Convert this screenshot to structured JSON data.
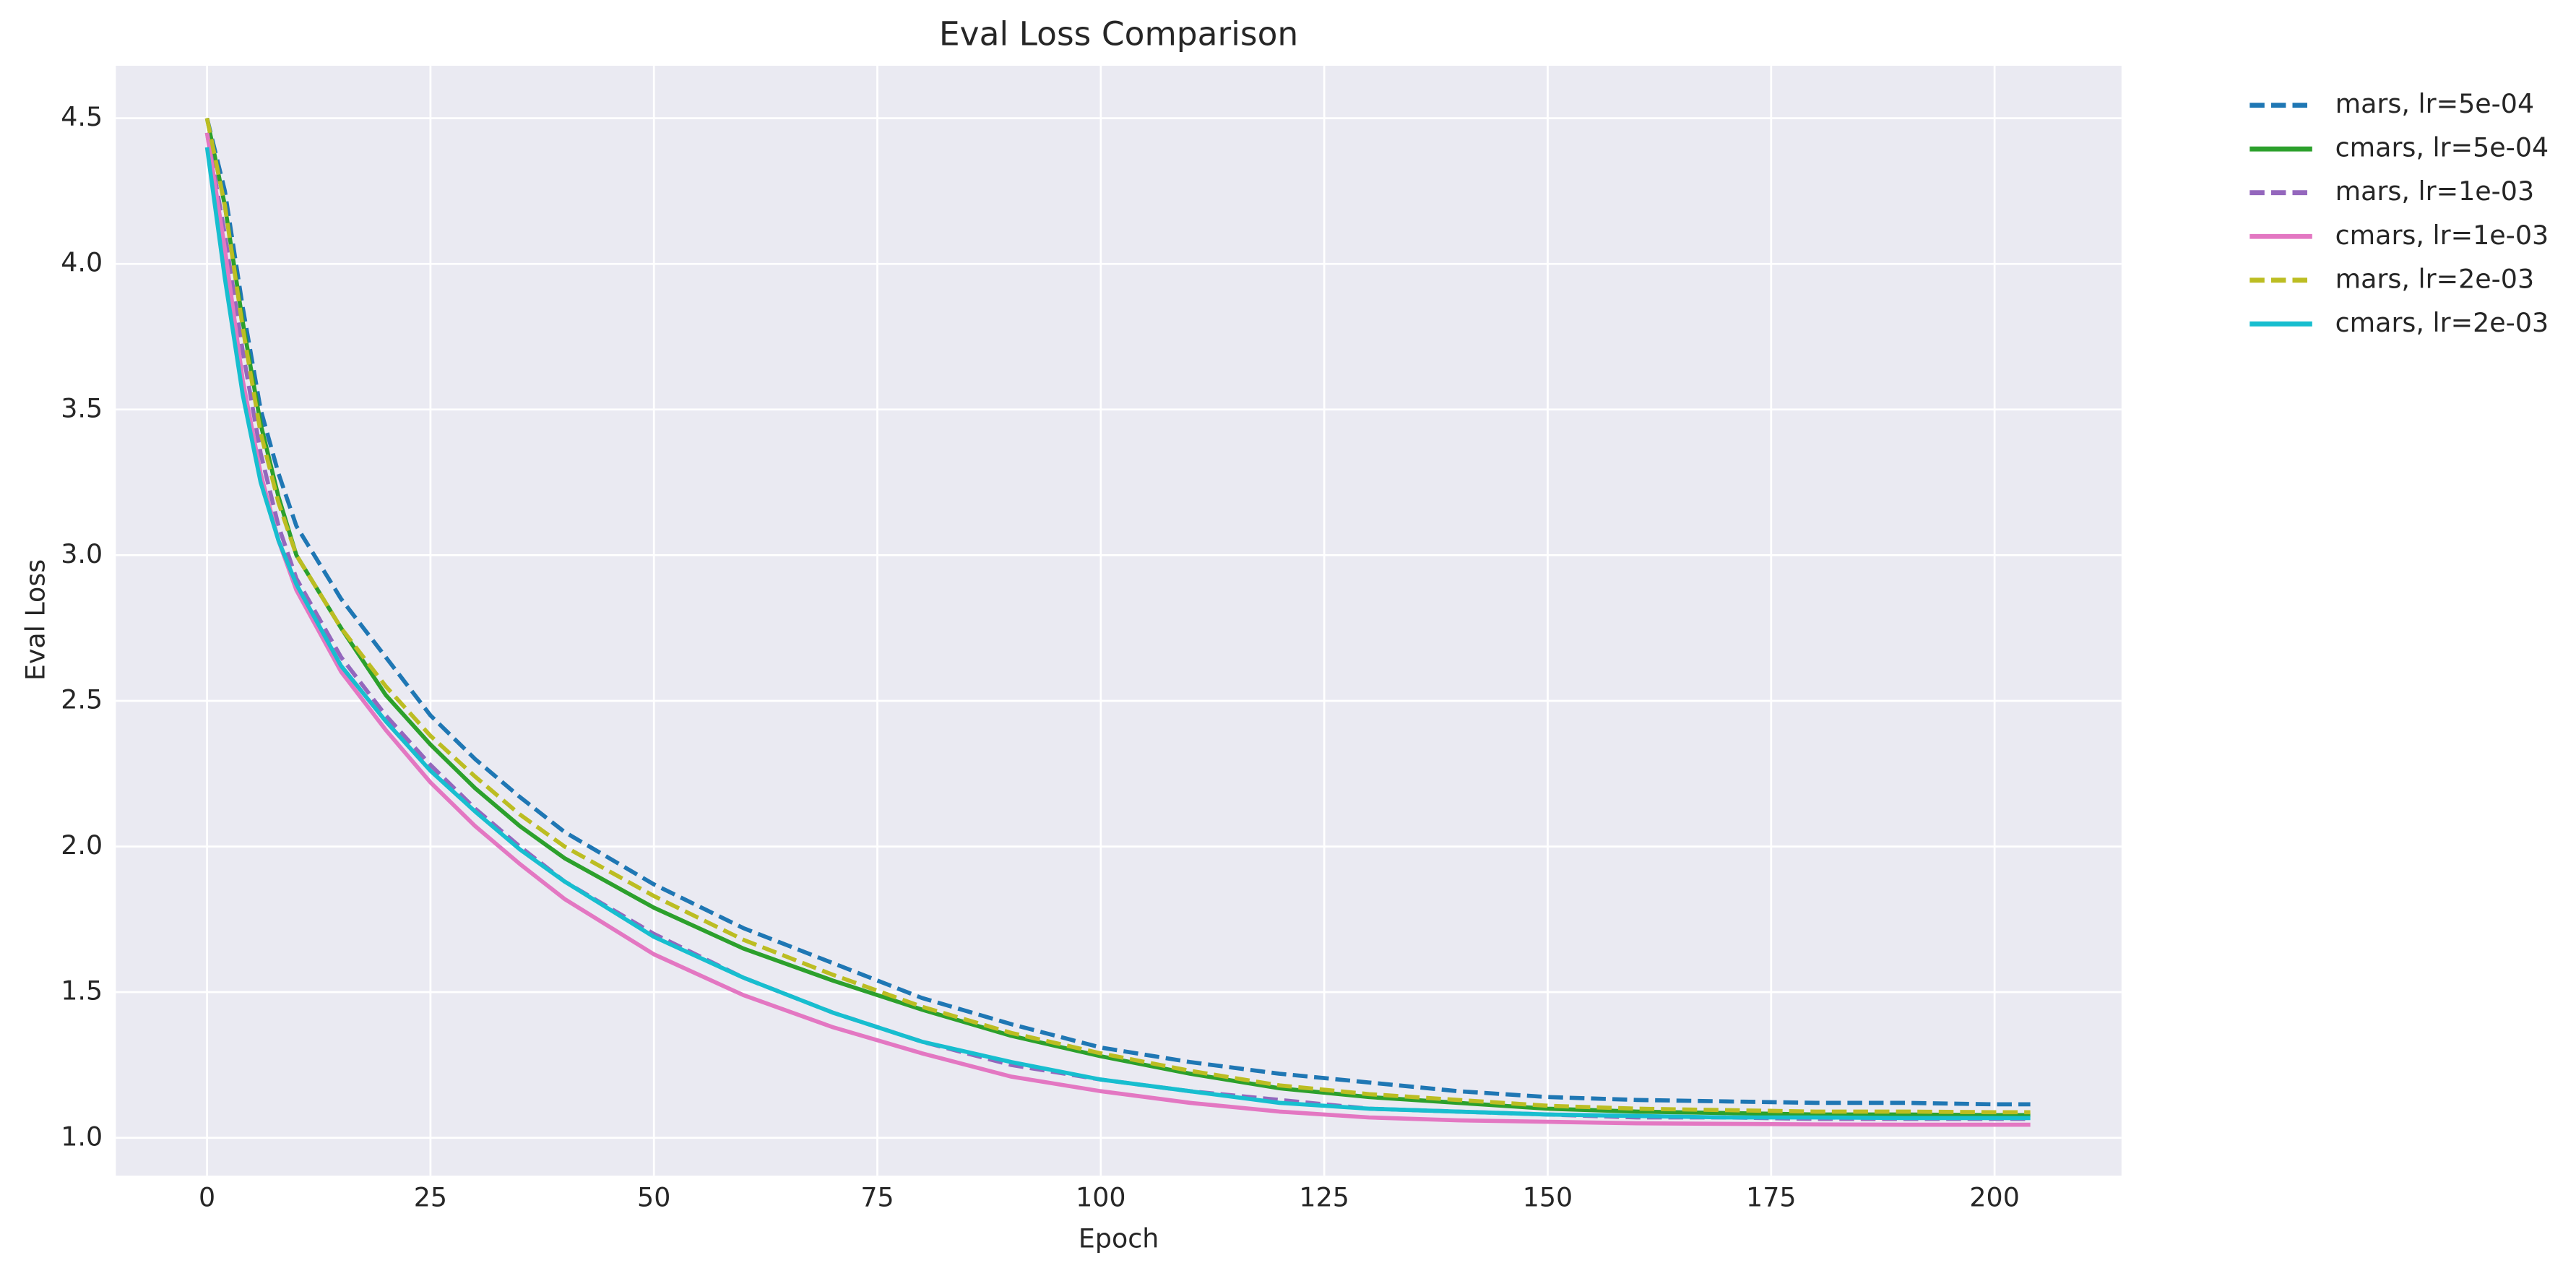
{
  "chart_data": {
    "type": "line",
    "title": "Eval Loss Comparison",
    "xlabel": "Epoch",
    "ylabel": "Eval Loss",
    "x": [
      0,
      2,
      4,
      6,
      8,
      10,
      15,
      20,
      25,
      30,
      35,
      40,
      50,
      60,
      70,
      80,
      90,
      100,
      110,
      120,
      130,
      140,
      150,
      160,
      170,
      180,
      190,
      200,
      204
    ],
    "series": [
      {
        "name": "mars, lr=5e-04",
        "color": "#1f77b4",
        "linestyle": "dashed",
        "values": [
          4.5,
          4.25,
          3.85,
          3.5,
          3.28,
          3.1,
          2.85,
          2.65,
          2.45,
          2.3,
          2.17,
          2.05,
          1.87,
          1.72,
          1.6,
          1.48,
          1.39,
          1.31,
          1.26,
          1.22,
          1.19,
          1.16,
          1.14,
          1.13,
          1.125,
          1.12,
          1.12,
          1.115,
          1.115
        ]
      },
      {
        "name": "cmars, lr=5e-04",
        "color": "#2ca02c",
        "linestyle": "solid",
        "values": [
          4.5,
          4.2,
          3.8,
          3.45,
          3.2,
          3.0,
          2.75,
          2.52,
          2.35,
          2.2,
          2.07,
          1.96,
          1.79,
          1.65,
          1.54,
          1.44,
          1.35,
          1.28,
          1.22,
          1.17,
          1.14,
          1.12,
          1.1,
          1.09,
          1.085,
          1.08,
          1.08,
          1.078,
          1.078
        ]
      },
      {
        "name": "mars, lr=1e-03",
        "color": "#9467bd",
        "linestyle": "dashed",
        "values": [
          4.45,
          4.1,
          3.7,
          3.35,
          3.1,
          2.92,
          2.65,
          2.45,
          2.28,
          2.13,
          2.0,
          1.88,
          1.7,
          1.55,
          1.43,
          1.33,
          1.25,
          1.2,
          1.16,
          1.13,
          1.1,
          1.09,
          1.08,
          1.07,
          1.07,
          1.065,
          1.065,
          1.065,
          1.065
        ]
      },
      {
        "name": "cmars, lr=1e-03",
        "color": "#e377c2",
        "linestyle": "solid",
        "values": [
          4.45,
          4.05,
          3.6,
          3.28,
          3.05,
          2.88,
          2.6,
          2.4,
          2.22,
          2.07,
          1.94,
          1.82,
          1.63,
          1.49,
          1.38,
          1.29,
          1.21,
          1.16,
          1.12,
          1.09,
          1.07,
          1.06,
          1.055,
          1.05,
          1.048,
          1.046,
          1.045,
          1.045,
          1.045
        ]
      },
      {
        "name": "mars, lr=2e-03",
        "color": "#bcbd22",
        "linestyle": "dashed",
        "values": [
          4.5,
          4.2,
          3.78,
          3.42,
          3.18,
          3.0,
          2.75,
          2.55,
          2.38,
          2.24,
          2.11,
          2.0,
          1.83,
          1.68,
          1.56,
          1.45,
          1.36,
          1.29,
          1.23,
          1.18,
          1.15,
          1.13,
          1.11,
          1.1,
          1.095,
          1.09,
          1.09,
          1.088,
          1.088
        ]
      },
      {
        "name": "cmars, lr=2e-03",
        "color": "#17becf",
        "linestyle": "solid",
        "values": [
          4.4,
          3.95,
          3.55,
          3.25,
          3.05,
          2.9,
          2.62,
          2.43,
          2.26,
          2.12,
          1.99,
          1.88,
          1.69,
          1.55,
          1.43,
          1.33,
          1.26,
          1.2,
          1.16,
          1.12,
          1.1,
          1.09,
          1.08,
          1.075,
          1.07,
          1.07,
          1.068,
          1.068,
          1.068
        ]
      }
    ],
    "xlim": [
      -10.2,
      214.2
    ],
    "ylim": [
      0.87,
      4.68
    ],
    "xticks": [
      0,
      25,
      50,
      75,
      100,
      125,
      150,
      175,
      200
    ],
    "yticks": [
      {
        "value": 1.0,
        "label": "1.0"
      },
      1.5,
      {
        "value": 2.0,
        "label": "2.0"
      },
      2.5,
      {
        "value": 3.0,
        "label": "3.0"
      },
      3.5,
      {
        "value": 4.0,
        "label": "4.0"
      },
      4.5
    ],
    "grid": true,
    "legend": "outside upper right"
  }
}
